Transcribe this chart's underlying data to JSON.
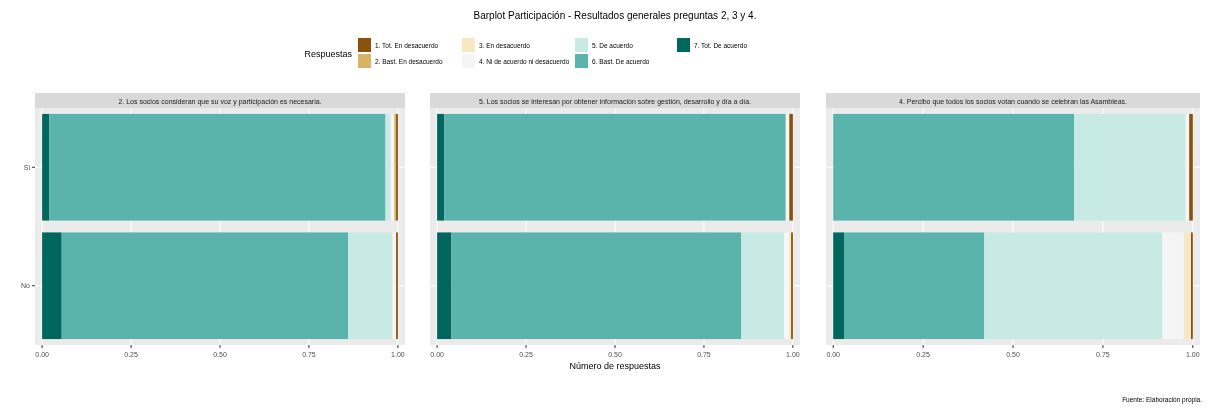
{
  "chart_data": [
    {
      "type": "bar",
      "orientation": "horizontal",
      "stacked": true,
      "subtitle": "2. Los socios consideran que su voz y participación es necesaria.",
      "legend_title": "Respuestas",
      "legend": "top",
      "grid": true,
      "categories": [
        "Si",
        "No"
      ],
      "xlim": [
        -0.02,
        1.02
      ],
      "xticks": [
        {
          "value": 0,
          "label": "0.00"
        },
        {
          "value": 0.25,
          "label": "0.25"
        },
        {
          "value": 0.5,
          "label": "0.50"
        },
        {
          "value": 0.75,
          "label": "0.75"
        },
        {
          "value": 1,
          "label": "1.00"
        }
      ],
      "series": [
        {
          "name": "7. Tot. De acuerdo",
          "color": "#01665e",
          "values": [
            0.02,
            0.055
          ]
        },
        {
          "name": "6. Bast. De acuerdo",
          "color": "#5ab4ac",
          "values": [
            0.945,
            0.805
          ]
        },
        {
          "name": "5. De acuerdo",
          "color": "#c7eae5",
          "values": [
            0.015,
            0.125
          ]
        },
        {
          "name": "4. Ni de acuerdo ni desacuerdo",
          "color": "#f5f5f5",
          "values": [
            0.01,
            0.01
          ]
        },
        {
          "name": "3. En desacuerdo",
          "color": "#f6e8c3",
          "values": [
            0,
            0
          ]
        },
        {
          "name": "2. Bast. En desacuerdo",
          "color": "#d8b365",
          "values": [
            0.005,
            0
          ]
        },
        {
          "name": "1. Tot. En desacuerdo",
          "color": "#8c510a",
          "values": [
            0.005,
            0.005
          ]
        }
      ]
    },
    {
      "type": "bar",
      "orientation": "horizontal",
      "stacked": true,
      "title": "Barplot Participación - Resultados generales preguntas 2, 3 y 4.",
      "subtitle": "5. Los socios se interesan por obtener información sobre gestión, desarrollo y día a día.",
      "xlabel": "Número de respuestas",
      "grid": true,
      "tick_labels": "x",
      "categories": [
        null,
        null
      ],
      "xlim": [
        -0.02,
        1.02
      ],
      "xticks": [
        {
          "value": 0,
          "label": "0.00"
        },
        {
          "value": 0.25,
          "label": "0.25"
        },
        {
          "value": 0.5,
          "label": "0.50"
        },
        {
          "value": 0.75,
          "label": "0.75"
        },
        {
          "value": 1,
          "label": "1.00"
        }
      ],
      "series": [
        {
          "color": "#01665e",
          "values": [
            0.02,
            0.04
          ]
        },
        {
          "color": "#5ab4ac",
          "values": [
            0.96,
            0.815
          ]
        },
        {
          "color": "#c7eae5",
          "values": [
            0,
            0.12
          ]
        },
        {
          "color": "#f5f5f5",
          "values": [
            0.01,
            0.015
          ]
        },
        {
          "color": "#f6e8c3",
          "values": [
            0,
            0.005
          ]
        },
        {
          "color": "#d8b365",
          "values": [
            0,
            0
          ]
        },
        {
          "color": "#8c510a",
          "values": [
            0.01,
            0.005
          ]
        }
      ]
    },
    {
      "type": "bar",
      "orientation": "horizontal",
      "stacked": true,
      "subtitle": "4. Percibo que todos los socios votan cuando se celebran las Asambleas.",
      "grid": true,
      "tick_labels": "x",
      "annotations": [
        "Fuente: Elaboración propia."
      ],
      "categories": [
        null,
        null
      ],
      "xlim": [
        -0.02,
        1.02
      ],
      "xticks": [
        {
          "value": 0,
          "label": "0.00"
        },
        {
          "value": 0.25,
          "label": "0.25"
        },
        {
          "value": 0.5,
          "label": "0.50"
        },
        {
          "value": 0.75,
          "label": "0.75"
        },
        {
          "value": 1,
          "label": "1.00"
        }
      ],
      "series": [
        {
          "color": "#01665e",
          "values": [
            0,
            0.03
          ]
        },
        {
          "color": "#5ab4ac",
          "values": [
            0.67,
            0.39
          ]
        },
        {
          "color": "#c7eae5",
          "values": [
            0.31,
            0.495
          ]
        },
        {
          "color": "#f5f5f5",
          "values": [
            0.01,
            0.06
          ]
        },
        {
          "color": "#f6e8c3",
          "values": [
            0,
            0.02
          ]
        },
        {
          "color": "#d8b365",
          "values": [
            0,
            0
          ]
        },
        {
          "color": "#8c510a",
          "values": [
            0.01,
            0.005
          ]
        }
      ]
    }
  ]
}
